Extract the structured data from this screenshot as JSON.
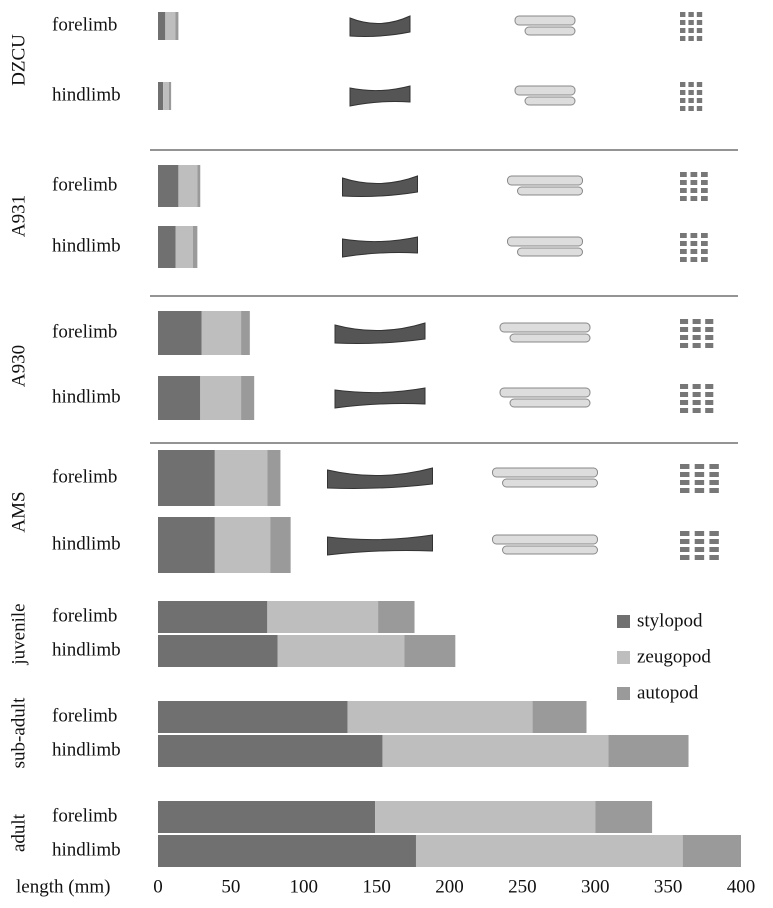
{
  "chart_data": {
    "type": "stacked-bar-horizontal",
    "groups": [
      {
        "name": "DZCU",
        "categories": [
          "forelimb",
          "hindlimb"
        ]
      },
      {
        "name": "A931",
        "categories": [
          "forelimb",
          "hindlimb"
        ]
      },
      {
        "name": "A930",
        "categories": [
          "forelimb",
          "hindlimb"
        ]
      },
      {
        "name": "AMS",
        "categories": [
          "forelimb",
          "hindlimb"
        ]
      },
      {
        "name": "juvenile",
        "categories": [
          "forelimb",
          "hindlimb"
        ]
      },
      {
        "name": "sub-adult",
        "categories": [
          "forelimb",
          "hindlimb"
        ]
      },
      {
        "name": "adult",
        "categories": [
          "forelimb",
          "hindlimb"
        ]
      }
    ],
    "series": [
      {
        "name": "stylopod",
        "color": "#707070",
        "values": [
          5,
          3.5,
          14,
          12,
          30,
          29,
          39,
          39,
          75,
          82,
          130,
          154,
          149,
          177
        ]
      },
      {
        "name": "zeugopod",
        "color": "#bebebe",
        "values": [
          7,
          4,
          13,
          12,
          27,
          28,
          36,
          38,
          76,
          87,
          127,
          155,
          151,
          183
        ]
      },
      {
        "name": "autopod",
        "color": "#9a9a9a",
        "values": [
          2,
          1.5,
          2,
          3,
          6,
          9,
          9,
          14,
          25,
          35,
          37,
          55,
          39,
          40
        ]
      }
    ],
    "xlabel": "length (mm)",
    "xlim": [
      0,
      400
    ],
    "xticks": [
      0,
      50,
      100,
      150,
      200,
      250,
      300,
      350,
      400
    ],
    "legend": "right"
  }
}
